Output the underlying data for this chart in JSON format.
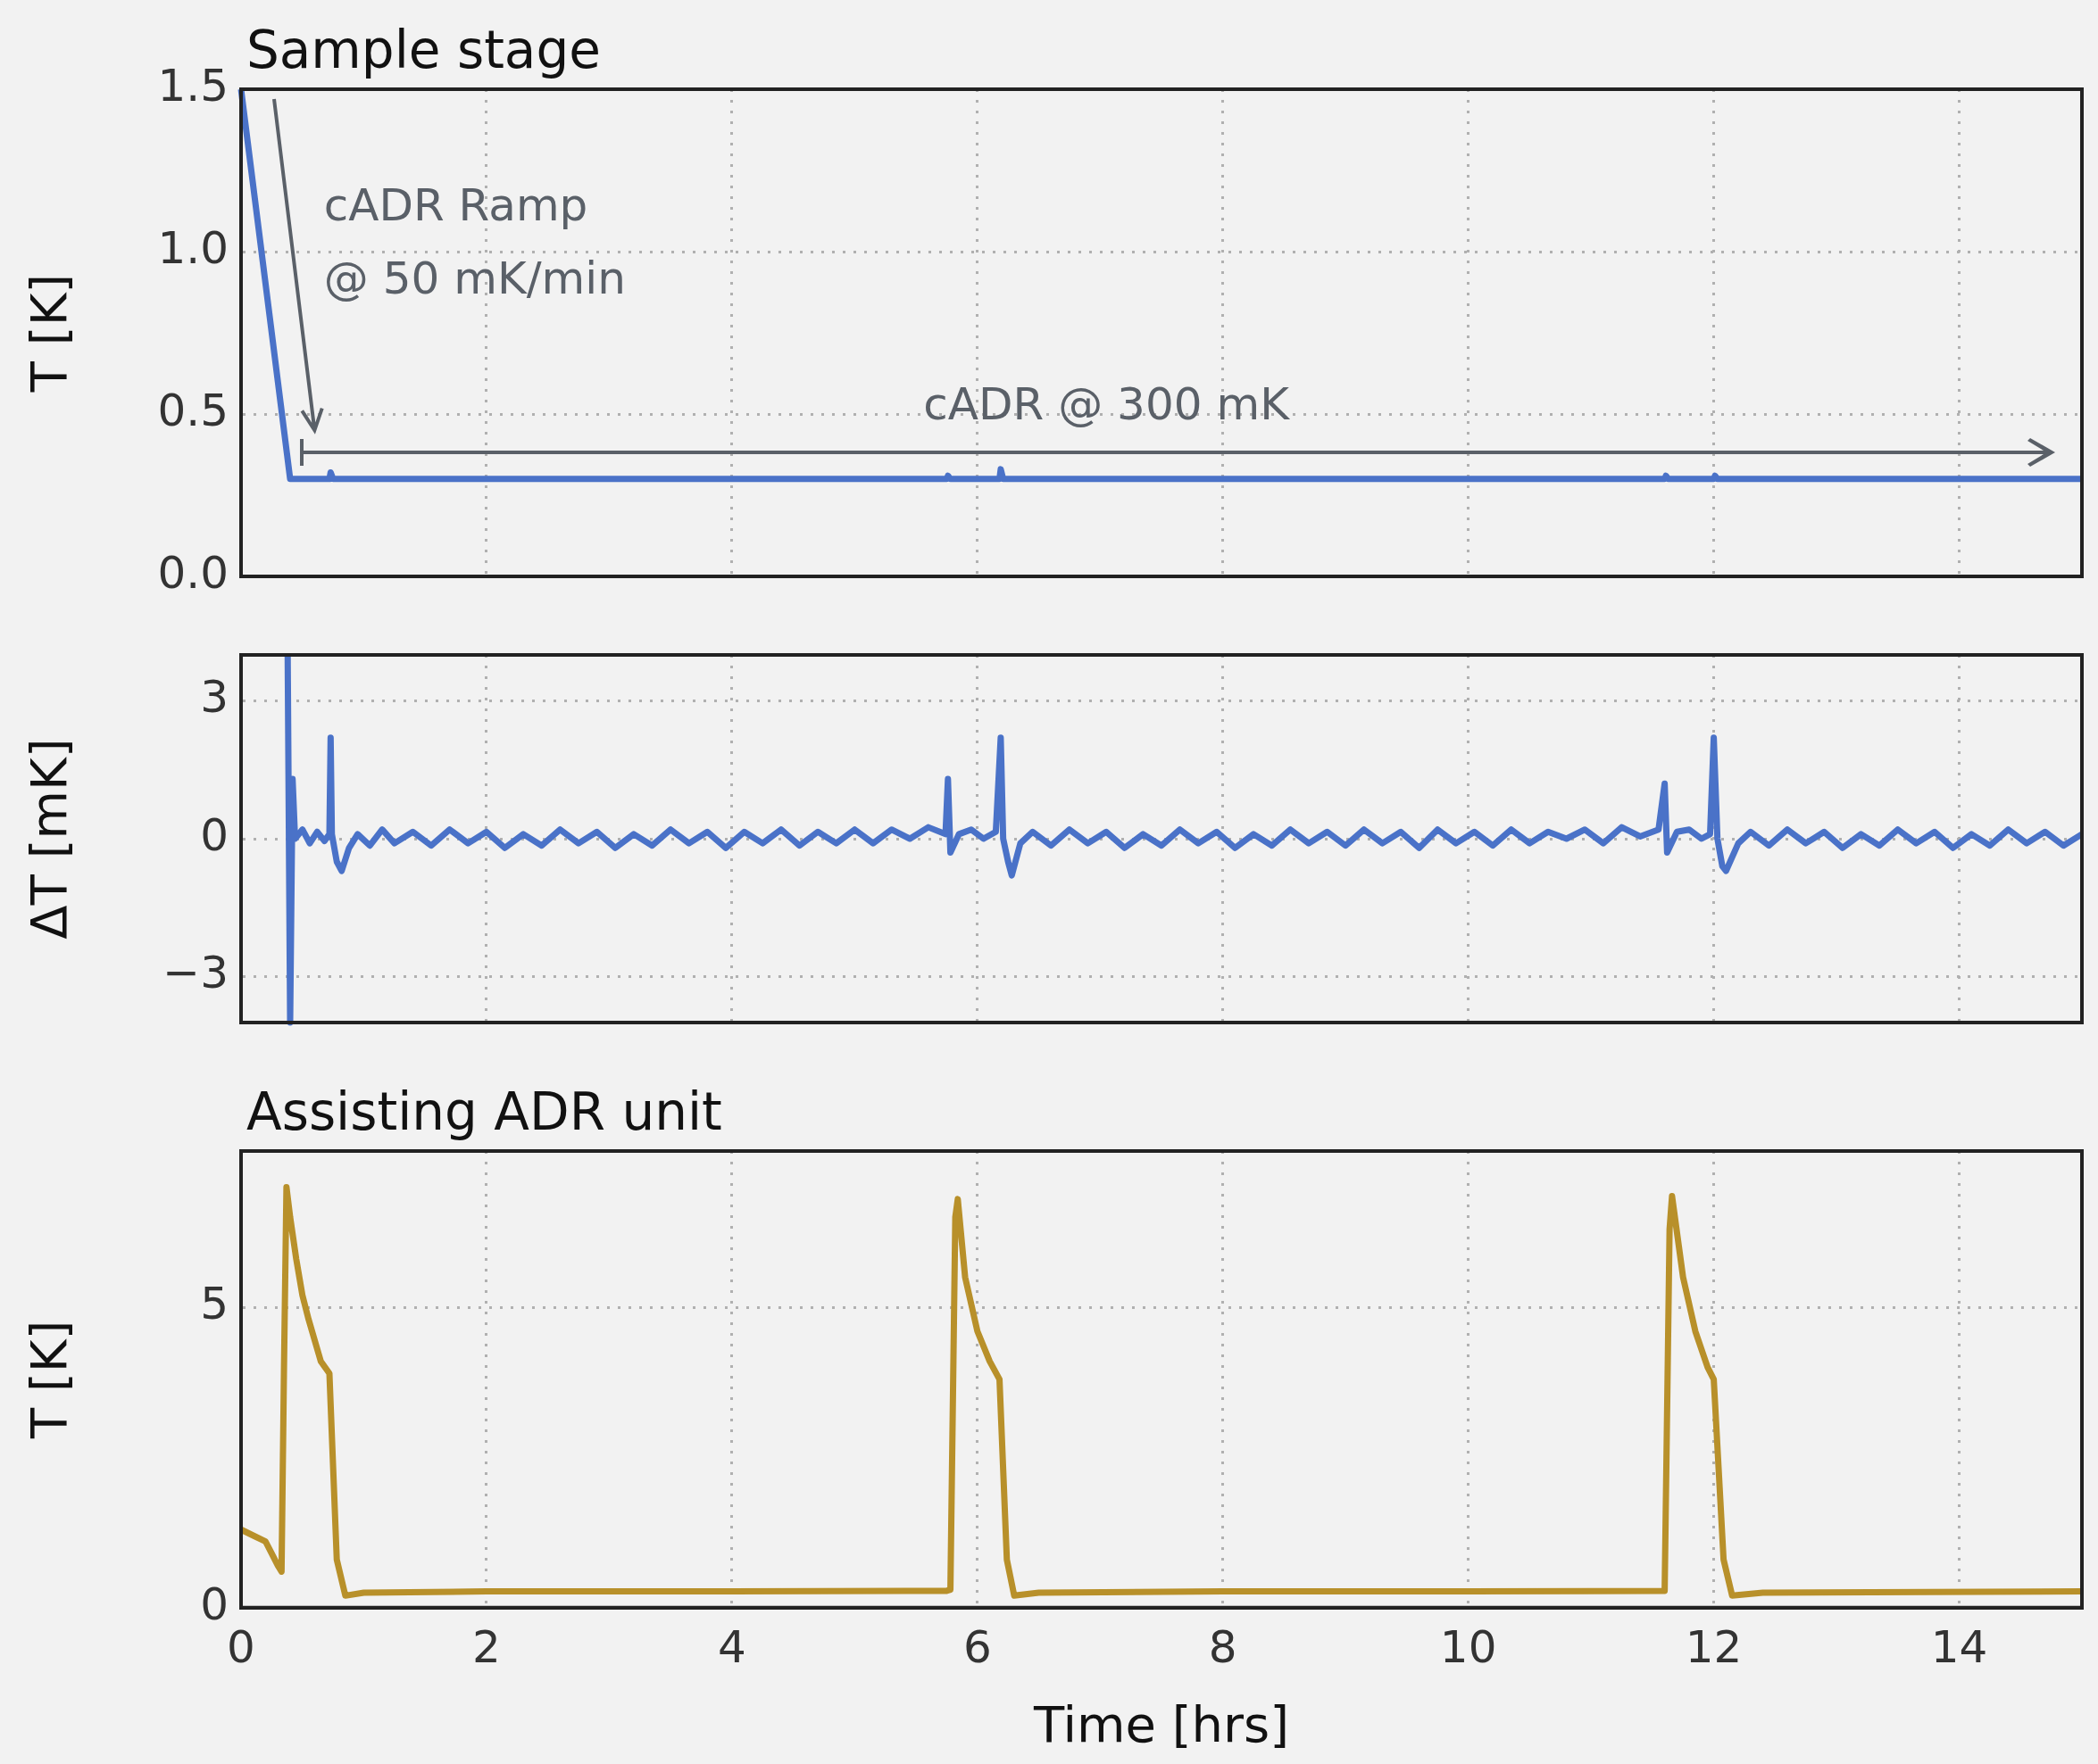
{
  "chart_data": [
    {
      "type": "line",
      "title": "Sample stage",
      "ylabel": "T [K]",
      "xlim": [
        0,
        15
      ],
      "xticks": [
        0,
        2,
        4,
        6,
        8,
        10,
        12,
        14
      ],
      "ylim": [
        0,
        1.5
      ],
      "yticks": [
        {
          "value": 0,
          "label": "0.0"
        },
        {
          "value": 0.5,
          "label": "0.5"
        },
        {
          "value": 1,
          "label": "1.0"
        },
        {
          "value": 1.5,
          "label": "1.5"
        }
      ],
      "grid": true,
      "tick_labels": "y",
      "series": [
        {
          "color": "#4a72c8",
          "x": [
            0,
            0.4,
            0.42,
            0.72,
            0.73,
            0.75,
            5.75,
            5.76,
            5.78,
            6.18,
            6.19,
            6.21,
            11.6,
            11.61,
            11.63,
            12.0,
            12.01,
            12.03,
            15
          ],
          "values": [
            1.5,
            0.3,
            0.3,
            0.3,
            0.32,
            0.3,
            0.3,
            0.31,
            0.3,
            0.3,
            0.33,
            0.3,
            0.3,
            0.31,
            0.3,
            0.3,
            0.31,
            0.3,
            0.3
          ]
        }
      ],
      "annotations": [
        "cADR Ramp\n@ 50 mK/min",
        "cADR @ 300 mK"
      ]
    },
    {
      "type": "line",
      "ylabel": "ΔT [mK]",
      "xlim": [
        0,
        15
      ],
      "xticks": [
        0,
        2,
        4,
        6,
        8,
        10,
        12,
        14
      ],
      "ylim": [
        -4,
        4
      ],
      "yticks": [
        {
          "value": -3,
          "label": "−3"
        },
        0,
        3
      ],
      "grid": true,
      "tick_labels": "y",
      "series": [
        {
          "color": "#4a72c8",
          "x": [
            0.38,
            0.4,
            0.42,
            0.44,
            0.5,
            0.56,
            0.62,
            0.68,
            0.72,
            0.73,
            0.74,
            0.78,
            0.82,
            0.88,
            0.95,
            1.05,
            1.15,
            1.25,
            1.4,
            1.55,
            1.7,
            1.85,
            2.0,
            2.15,
            2.3,
            2.45,
            2.6,
            2.75,
            2.9,
            3.05,
            3.2,
            3.35,
            3.5,
            3.65,
            3.8,
            3.95,
            4.1,
            4.25,
            4.4,
            4.55,
            4.7,
            4.85,
            5.0,
            5.15,
            5.3,
            5.45,
            5.6,
            5.74,
            5.76,
            5.78,
            5.85,
            5.95,
            6.05,
            6.15,
            6.19,
            6.21,
            6.25,
            6.28,
            6.35,
            6.45,
            6.6,
            6.75,
            6.9,
            7.05,
            7.2,
            7.35,
            7.5,
            7.65,
            7.8,
            7.95,
            8.1,
            8.25,
            8.4,
            8.55,
            8.7,
            8.85,
            9.0,
            9.15,
            9.3,
            9.45,
            9.6,
            9.75,
            9.9,
            10.05,
            10.2,
            10.35,
            10.5,
            10.65,
            10.8,
            10.95,
            11.1,
            11.25,
            11.4,
            11.55,
            11.6,
            11.62,
            11.7,
            11.8,
            11.9,
            11.97,
            12.0,
            12.03,
            12.07,
            12.1,
            12.2,
            12.3,
            12.45,
            12.6,
            12.75,
            12.9,
            13.05,
            13.2,
            13.35,
            13.5,
            13.65,
            13.8,
            13.95,
            14.1,
            14.25,
            14.4,
            14.55,
            14.7,
            14.85,
            15.0
          ],
          "values": [
            4,
            -4,
            1.3,
            0.0,
            0.2,
            -0.1,
            0.15,
            -0.05,
            0.1,
            2.2,
            0.1,
            -0.5,
            -0.7,
            -0.2,
            0.1,
            -0.15,
            0.2,
            -0.1,
            0.15,
            -0.15,
            0.2,
            -0.1,
            0.15,
            -0.2,
            0.1,
            -0.15,
            0.2,
            -0.1,
            0.15,
            -0.2,
            0.1,
            -0.15,
            0.2,
            -0.1,
            0.15,
            -0.2,
            0.15,
            -0.1,
            0.2,
            -0.15,
            0.15,
            -0.1,
            0.2,
            -0.1,
            0.2,
            0.0,
            0.25,
            0.1,
            1.3,
            -0.3,
            0.1,
            0.2,
            0.0,
            0.15,
            2.2,
            0.0,
            -0.5,
            -0.8,
            -0.1,
            0.15,
            -0.15,
            0.2,
            -0.1,
            0.15,
            -0.2,
            0.1,
            -0.15,
            0.2,
            -0.1,
            0.15,
            -0.2,
            0.1,
            -0.15,
            0.2,
            -0.1,
            0.15,
            -0.15,
            0.2,
            -0.1,
            0.15,
            -0.2,
            0.2,
            -0.1,
            0.15,
            -0.15,
            0.2,
            -0.1,
            0.15,
            0.0,
            0.2,
            -0.1,
            0.25,
            0.05,
            0.2,
            1.2,
            -0.3,
            0.15,
            0.2,
            0.0,
            0.1,
            2.2,
            0.0,
            -0.6,
            -0.7,
            -0.1,
            0.15,
            -0.15,
            0.2,
            -0.1,
            0.15,
            -0.2,
            0.1,
            -0.15,
            0.2,
            -0.1,
            0.15,
            -0.2,
            0.1,
            -0.15,
            0.2,
            -0.1,
            0.15,
            -0.15,
            0.1
          ]
        }
      ]
    },
    {
      "type": "line",
      "title": "Assisting ADR unit",
      "xlabel": "Time [hrs]",
      "ylabel": "T [K]",
      "xlim": [
        0,
        15
      ],
      "xticks": [
        0,
        2,
        4,
        6,
        8,
        10,
        12,
        14
      ],
      "ylim": [
        0,
        7.6
      ],
      "yticks": [
        0,
        5
      ],
      "grid": true,
      "series": [
        {
          "color": "#b8902a",
          "x": [
            0,
            0.1,
            0.2,
            0.25,
            0.3,
            0.33,
            0.35,
            0.37,
            0.4,
            0.45,
            0.5,
            0.55,
            0.65,
            0.72,
            0.78,
            0.85,
            1.0,
            2.0,
            4.0,
            5.75,
            5.78,
            5.82,
            5.84,
            5.9,
            6.0,
            6.1,
            6.18,
            6.24,
            6.3,
            6.5,
            8.0,
            10.0,
            11.6,
            11.64,
            11.66,
            11.75,
            11.85,
            11.95,
            12.0,
            12.08,
            12.15,
            12.4,
            15
          ],
          "values": [
            1.3,
            1.2,
            1.1,
            0.9,
            0.7,
            0.6,
            4.0,
            7.0,
            6.5,
            5.8,
            5.2,
            4.8,
            4.1,
            3.9,
            0.8,
            0.2,
            0.25,
            0.27,
            0.27,
            0.28,
            0.3,
            6.5,
            6.8,
            5.5,
            4.6,
            4.1,
            3.8,
            0.8,
            0.2,
            0.25,
            0.27,
            0.27,
            0.28,
            6.3,
            6.85,
            5.5,
            4.6,
            4.0,
            3.8,
            0.8,
            0.2,
            0.25,
            0.27
          ]
        }
      ]
    }
  ]
}
